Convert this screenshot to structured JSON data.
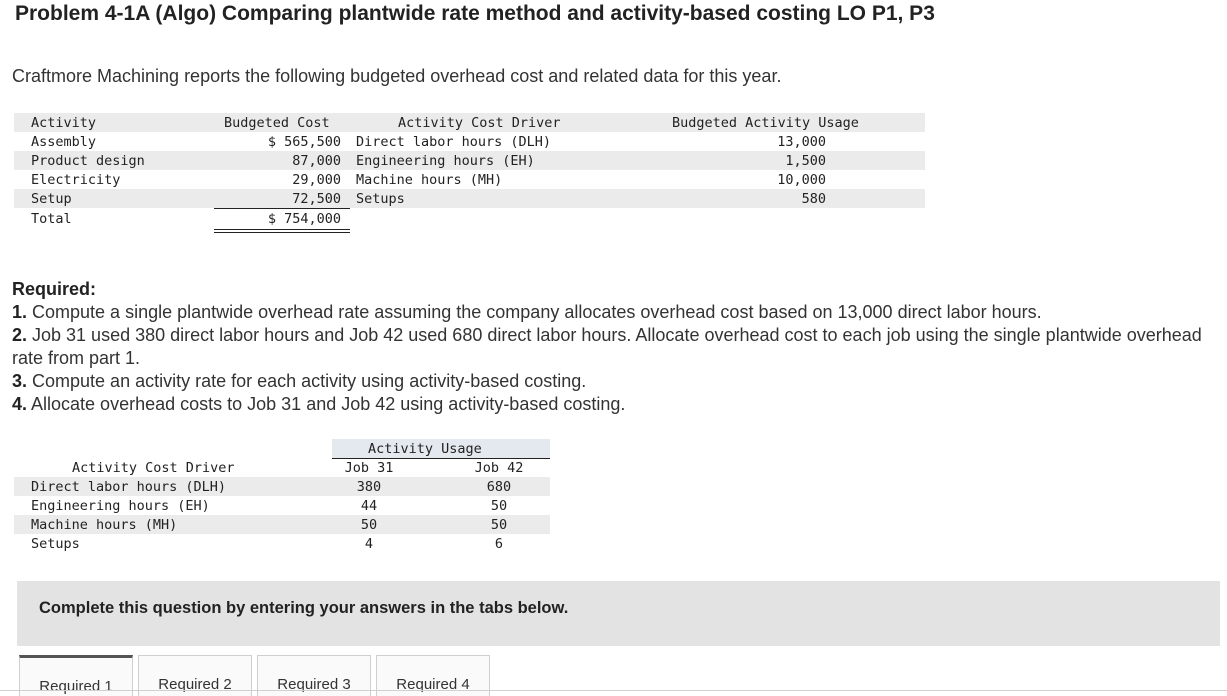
{
  "title": "Problem 4-1A (Algo) Comparing plantwide rate method and activity-based costing LO P1, P3",
  "intro": "Craftmore Machining reports the following budgeted overhead cost and related data for this year.",
  "table1": {
    "headers": {
      "activity": "Activity",
      "cost": "Budgeted Cost",
      "driver": "Activity Cost Driver",
      "usage": "Budgeted Activity Usage"
    },
    "rows": [
      {
        "activity": "Assembly",
        "cost": "$ 565,500",
        "driver": "Direct labor hours (DLH)",
        "usage": "13,000"
      },
      {
        "activity": "Product design",
        "cost": "87,000",
        "driver": "Engineering hours (EH)",
        "usage": "1,500"
      },
      {
        "activity": "Electricity",
        "cost": "29,000",
        "driver": "Machine hours (MH)",
        "usage": "10,000"
      },
      {
        "activity": "Setup",
        "cost": "72,500",
        "driver": "Setups",
        "usage": "580"
      }
    ],
    "total": {
      "label": "Total",
      "cost": "$ 754,000"
    }
  },
  "required": {
    "heading": "Required:",
    "items": [
      {
        "num": "1.",
        "text": " Compute a single plantwide overhead rate assuming the company allocates overhead cost based on 13,000 direct labor hours."
      },
      {
        "num": "2.",
        "text": " Job 31 used 380 direct labor hours and Job 42 used 680 direct labor hours. Allocate overhead cost to each job using the single plantwide overhead rate from part 1."
      },
      {
        "num": "3.",
        "text": " Compute an activity rate for each activity using activity-based costing."
      },
      {
        "num": "4.",
        "text": " Allocate overhead costs to Job 31 and Job 42 using activity-based costing."
      }
    ]
  },
  "table2": {
    "group_header": "Activity Usage",
    "headers": {
      "driver": "Activity Cost Driver",
      "job31": "Job 31",
      "job42": "Job 42"
    },
    "rows": [
      {
        "driver": "Direct labor hours (DLH)",
        "job31": "380",
        "job42": "680"
      },
      {
        "driver": "Engineering hours (EH)",
        "job31": "44",
        "job42": "50"
      },
      {
        "driver": "Machine hours (MH)",
        "job31": "50",
        "job42": "50"
      },
      {
        "driver": "Setups",
        "job31": "4",
        "job42": "6"
      }
    ]
  },
  "instruction": "Complete this question by entering your answers in the tabs below.",
  "tabs": [
    {
      "label": "Required 1"
    },
    {
      "label": "Required 2"
    },
    {
      "label": "Required 3"
    },
    {
      "label": "Required 4"
    }
  ]
}
